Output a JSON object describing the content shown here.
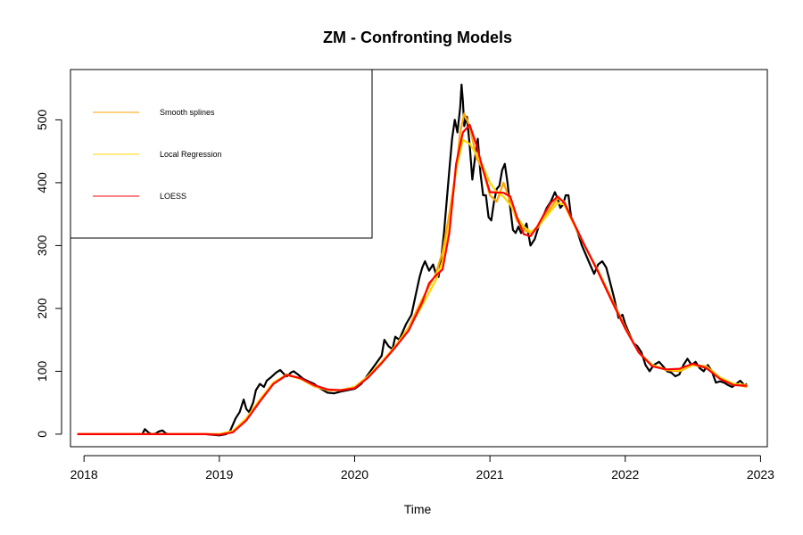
{
  "chart_data": {
    "type": "line",
    "title": "ZM - Confronting Models",
    "xlabel": "Time",
    "ylabel": "",
    "xlim": [
      2017.9,
      2023.05
    ],
    "ylim": [
      -20,
      580
    ],
    "x_ticks": [
      2018,
      2019,
      2020,
      2021,
      2022,
      2023
    ],
    "y_ticks": [
      0,
      100,
      200,
      300,
      400,
      500
    ],
    "grid": false,
    "legend_position": "top-left",
    "series": [
      {
        "role": "observed",
        "color": "#000000",
        "x": [
          2017.95,
          2018.3,
          2018.43,
          2018.45,
          2018.48,
          2018.5,
          2018.53,
          2018.55,
          2018.58,
          2018.6,
          2018.62,
          2018.7,
          2018.9,
          2019.0,
          2019.05,
          2019.08,
          2019.1,
          2019.12,
          2019.15,
          2019.18,
          2019.2,
          2019.22,
          2019.25,
          2019.27,
          2019.3,
          2019.33,
          2019.35,
          2019.38,
          2019.42,
          2019.45,
          2019.48,
          2019.5,
          2019.53,
          2019.55,
          2019.58,
          2019.62,
          2019.66,
          2019.7,
          2019.75,
          2019.8,
          2019.85,
          2019.9,
          2019.95,
          2020.0,
          2020.05,
          2020.1,
          2020.15,
          2020.2,
          2020.22,
          2020.25,
          2020.28,
          2020.3,
          2020.33,
          2020.35,
          2020.38,
          2020.42,
          2020.45,
          2020.48,
          2020.5,
          2020.52,
          2020.55,
          2020.58,
          2020.6,
          2020.62,
          2020.64,
          2020.66,
          2020.68,
          2020.7,
          2020.72,
          2020.74,
          2020.76,
          2020.78,
          2020.79,
          2020.8,
          2020.81,
          2020.83,
          2020.85,
          2020.87,
          2020.89,
          2020.91,
          2020.93,
          2020.95,
          2020.97,
          2020.99,
          2021.01,
          2021.03,
          2021.05,
          2021.07,
          2021.09,
          2021.11,
          2021.13,
          2021.15,
          2021.17,
          2021.19,
          2021.21,
          2021.23,
          2021.25,
          2021.27,
          2021.3,
          2021.33,
          2021.36,
          2021.39,
          2021.42,
          2021.45,
          2021.48,
          2021.5,
          2021.52,
          2021.54,
          2021.56,
          2021.58,
          2021.6,
          2021.62,
          2021.65,
          2021.68,
          2021.71,
          2021.74,
          2021.77,
          2021.8,
          2021.83,
          2021.86,
          2021.89,
          2021.92,
          2021.95,
          2021.98,
          2022.0,
          2022.03,
          2022.06,
          2022.09,
          2022.12,
          2022.15,
          2022.18,
          2022.21,
          2022.25,
          2022.28,
          2022.31,
          2022.34,
          2022.37,
          2022.4,
          2022.43,
          2022.46,
          2022.49,
          2022.52,
          2022.55,
          2022.58,
          2022.61,
          2022.64,
          2022.67,
          2022.7,
          2022.73,
          2022.76,
          2022.79,
          2022.82,
          2022.85,
          2022.88,
          2022.9
        ],
        "y": [
          0,
          0,
          0,
          8,
          2,
          0,
          1,
          4,
          6,
          2,
          0,
          0,
          0,
          -2,
          0,
          5,
          15,
          25,
          35,
          55,
          40,
          35,
          50,
          70,
          80,
          75,
          85,
          90,
          98,
          102,
          95,
          92,
          98,
          100,
          95,
          88,
          84,
          80,
          72,
          66,
          65,
          68,
          70,
          72,
          80,
          95,
          110,
          125,
          150,
          140,
          135,
          155,
          150,
          160,
          175,
          190,
          220,
          250,
          265,
          275,
          260,
          270,
          255,
          250,
          280,
          320,
          370,
          420,
          470,
          500,
          480,
          520,
          556,
          530,
          490,
          505,
          460,
          405,
          440,
          470,
          415,
          380,
          380,
          345,
          340,
          370,
          390,
          395,
          420,
          430,
          400,
          360,
          325,
          320,
          330,
          320,
          325,
          335,
          300,
          310,
          330,
          345,
          360,
          370,
          385,
          375,
          360,
          365,
          380,
          380,
          345,
          335,
          320,
          300,
          285,
          270,
          255,
          270,
          275,
          265,
          240,
          215,
          185,
          190,
          175,
          160,
          145,
          140,
          130,
          110,
          100,
          110,
          115,
          108,
          100,
          98,
          92,
          95,
          110,
          120,
          110,
          115,
          105,
          100,
          110,
          100,
          82,
          84,
          82,
          78,
          75,
          80,
          85,
          78,
          80
        ]
      },
      {
        "name": "Smooth splines",
        "color": "#FFA500",
        "x": [
          2017.95,
          2018.5,
          2018.9,
          2019.0,
          2019.1,
          2019.2,
          2019.3,
          2019.4,
          2019.5,
          2019.6,
          2019.7,
          2019.8,
          2019.9,
          2020.0,
          2020.1,
          2020.2,
          2020.3,
          2020.4,
          2020.5,
          2020.6,
          2020.65,
          2020.7,
          2020.75,
          2020.78,
          2020.81,
          2020.85,
          2020.9,
          2020.95,
          2021.0,
          2021.05,
          2021.1,
          2021.15,
          2021.2,
          2021.25,
          2021.3,
          2021.35,
          2021.4,
          2021.45,
          2021.5,
          2021.55,
          2021.6,
          2021.7,
          2021.8,
          2021.9,
          2022.0,
          2022.1,
          2022.2,
          2022.3,
          2022.4,
          2022.5,
          2022.6,
          2022.7,
          2022.8,
          2022.9
        ],
        "y": [
          0,
          0,
          0,
          0,
          5,
          25,
          55,
          82,
          95,
          88,
          76,
          70,
          70,
          75,
          92,
          115,
          140,
          170,
          215,
          255,
          290,
          350,
          420,
          480,
          510,
          490,
          440,
          420,
          380,
          370,
          400,
          370,
          340,
          325,
          320,
          330,
          345,
          360,
          375,
          370,
          345,
          300,
          260,
          215,
          170,
          130,
          110,
          102,
          100,
          110,
          108,
          90,
          80,
          75
        ]
      },
      {
        "name": "Local Regression",
        "color": "#FFD700",
        "x": [
          2017.95,
          2018.5,
          2018.9,
          2019.0,
          2019.1,
          2019.2,
          2019.3,
          2019.4,
          2019.5,
          2019.6,
          2019.7,
          2019.8,
          2019.9,
          2020.0,
          2020.1,
          2020.2,
          2020.3,
          2020.4,
          2020.5,
          2020.6,
          2020.65,
          2020.7,
          2020.75,
          2020.8,
          2020.85,
          2020.9,
          2020.95,
          2021.0,
          2021.05,
          2021.1,
          2021.15,
          2021.2,
          2021.25,
          2021.3,
          2021.35,
          2021.4,
          2021.45,
          2021.5,
          2021.55,
          2021.6,
          2021.7,
          2021.8,
          2021.9,
          2022.0,
          2022.1,
          2022.2,
          2022.3,
          2022.4,
          2022.5,
          2022.6,
          2022.7,
          2022.8,
          2022.9
        ],
        "y": [
          0,
          0,
          0,
          0,
          5,
          25,
          55,
          82,
          94,
          88,
          77,
          71,
          70,
          75,
          92,
          115,
          140,
          168,
          205,
          245,
          275,
          330,
          420,
          468,
          462,
          445,
          425,
          400,
          385,
          378,
          365,
          345,
          330,
          322,
          328,
          342,
          355,
          368,
          365,
          342,
          300,
          258,
          212,
          168,
          130,
          110,
          103,
          102,
          110,
          106,
          90,
          80,
          78
        ]
      },
      {
        "name": "LOESS",
        "color": "#FF0000",
        "x": [
          2017.95,
          2018.5,
          2018.9,
          2019.0,
          2019.1,
          2019.2,
          2019.3,
          2019.4,
          2019.5,
          2019.6,
          2019.7,
          2019.8,
          2019.9,
          2020.0,
          2020.1,
          2020.2,
          2020.3,
          2020.4,
          2020.5,
          2020.55,
          2020.6,
          2020.65,
          2020.7,
          2020.75,
          2020.8,
          2020.85,
          2020.9,
          2020.95,
          2021.0,
          2021.1,
          2021.15,
          2021.2,
          2021.25,
          2021.3,
          2021.35,
          2021.4,
          2021.45,
          2021.5,
          2021.55,
          2021.6,
          2021.7,
          2021.8,
          2021.9,
          2022.0,
          2022.1,
          2022.2,
          2022.3,
          2022.4,
          2022.5,
          2022.6,
          2022.7,
          2022.8,
          2022.9
        ],
        "y": [
          0,
          0,
          0,
          -1,
          3,
          22,
          52,
          80,
          94,
          89,
          78,
          71,
          70,
          73,
          90,
          113,
          138,
          165,
          210,
          240,
          252,
          262,
          320,
          430,
          480,
          492,
          460,
          420,
          385,
          384,
          378,
          345,
          318,
          315,
          330,
          350,
          368,
          378,
          368,
          345,
          300,
          258,
          212,
          168,
          130,
          108,
          103,
          104,
          112,
          105,
          88,
          78,
          77
        ]
      }
    ]
  }
}
